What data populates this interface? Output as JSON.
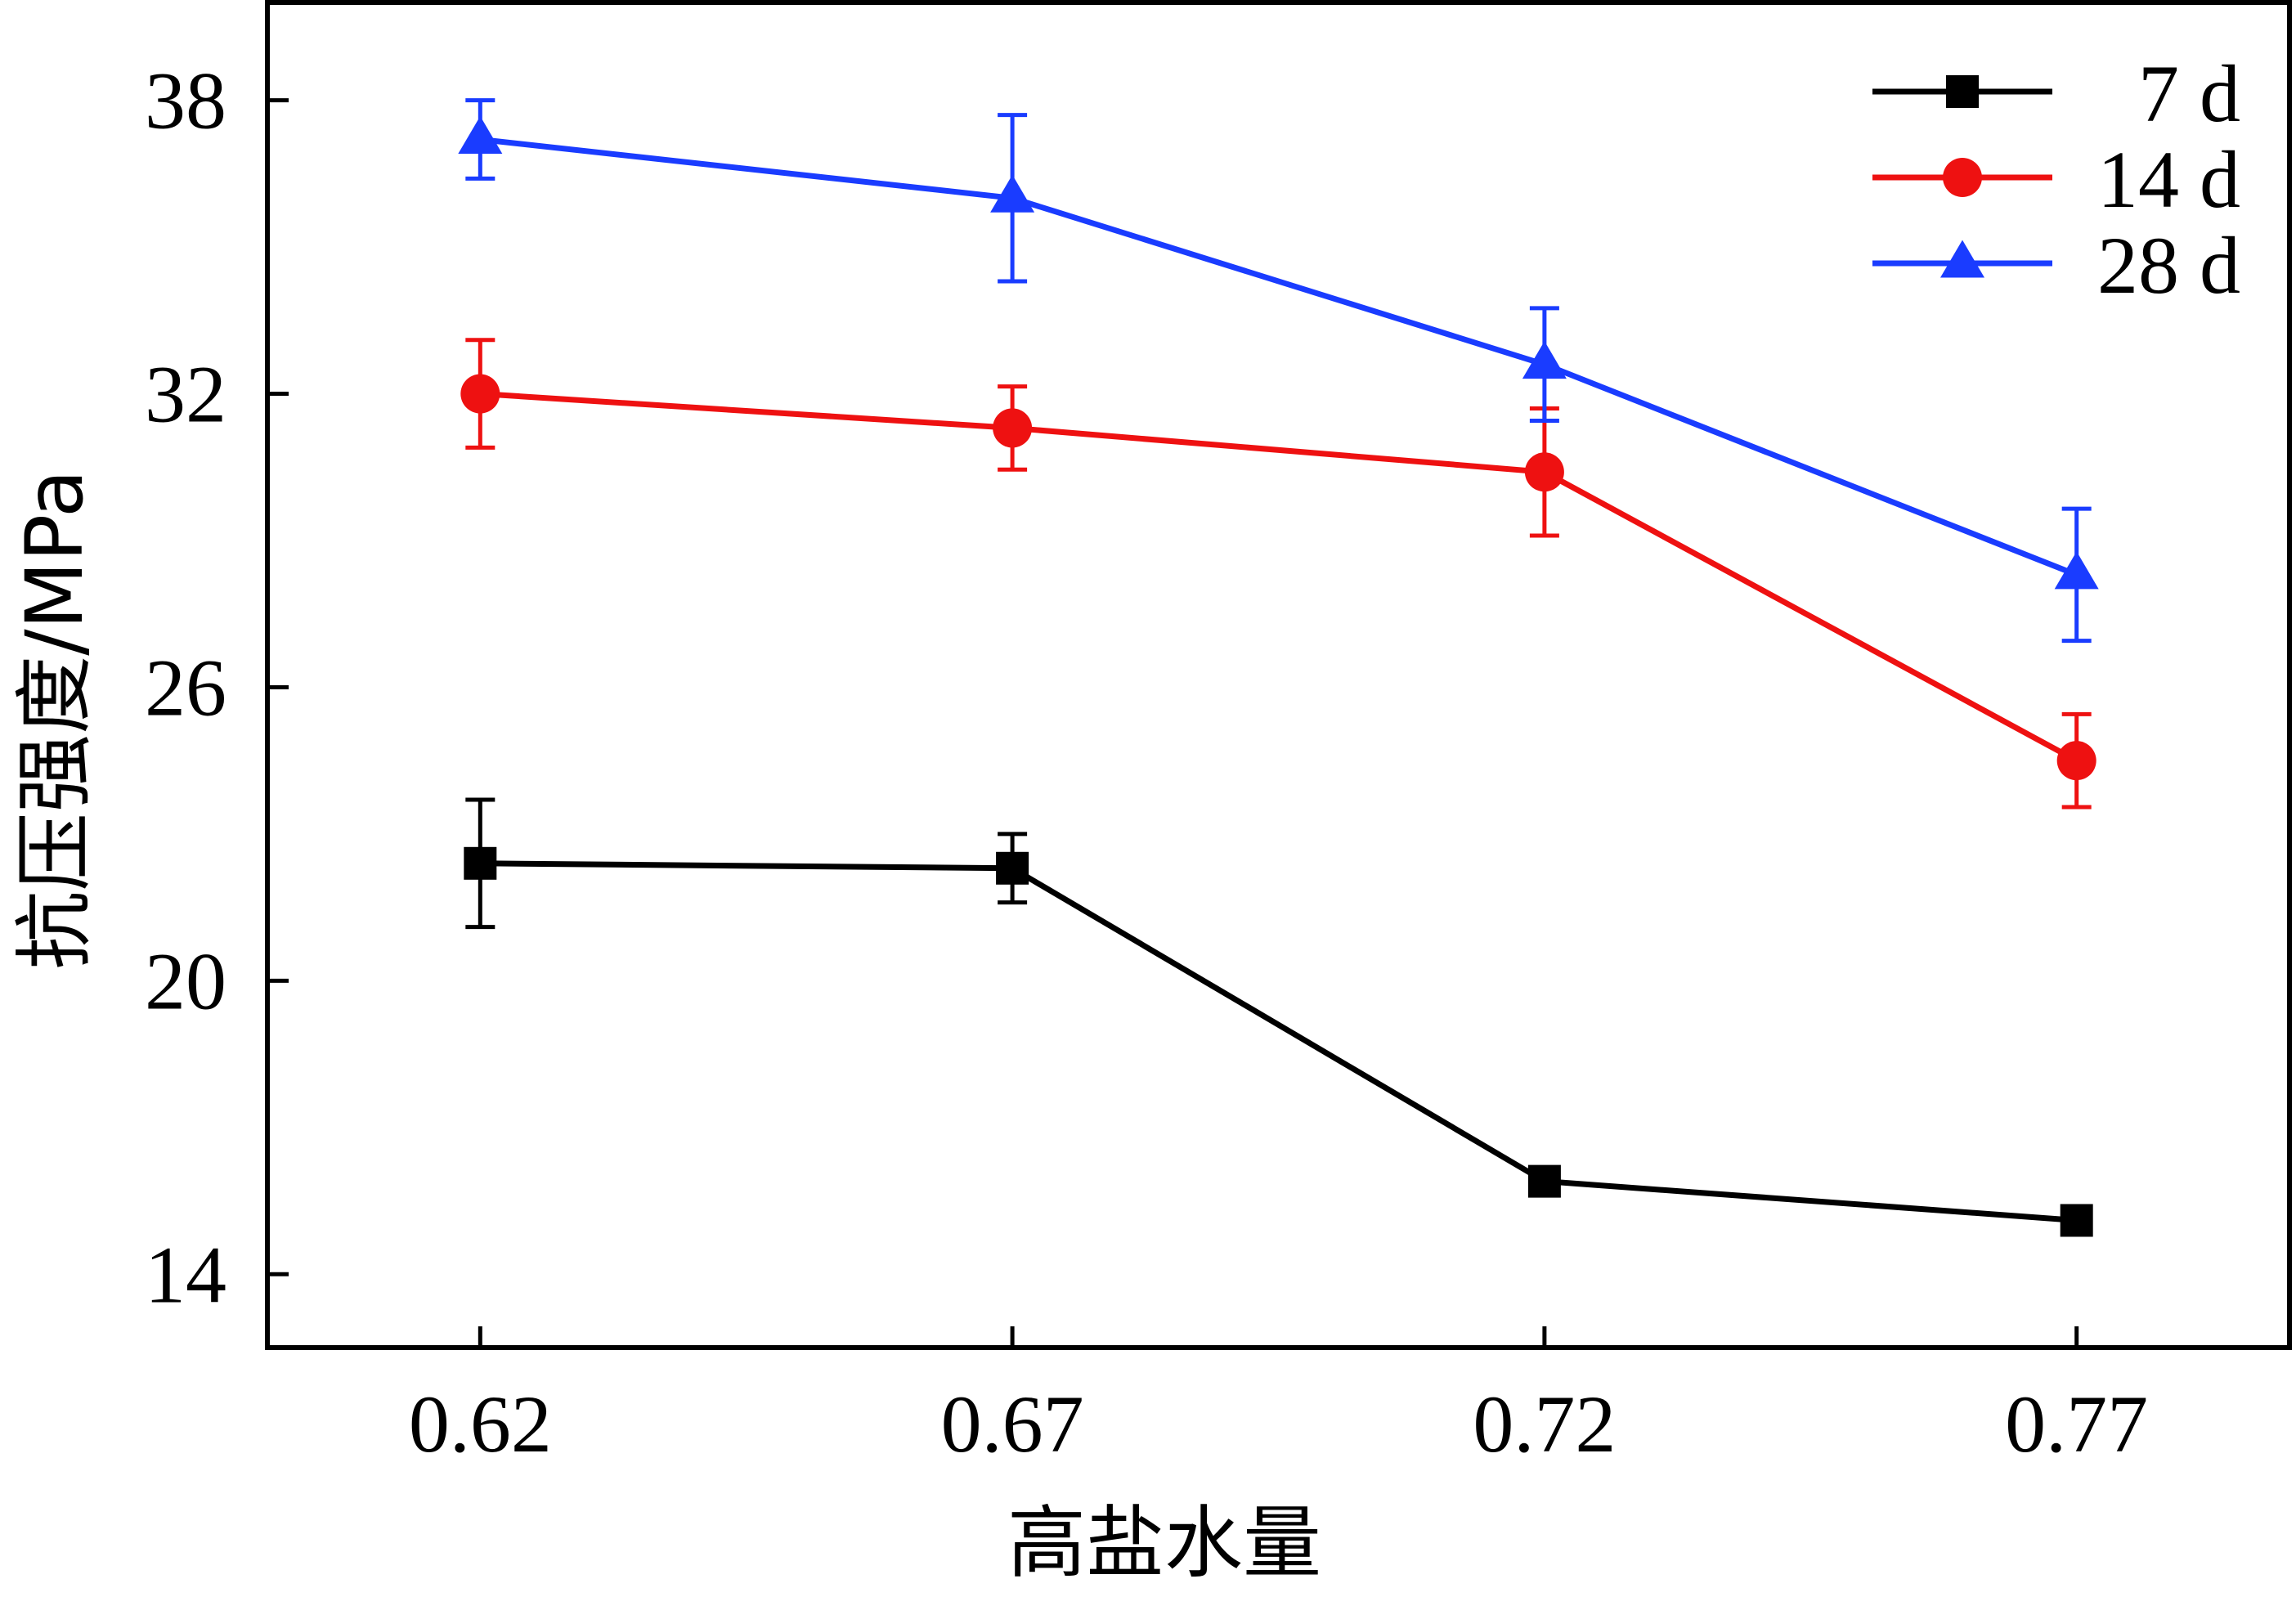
{
  "chart_data": {
    "type": "line",
    "title": "",
    "xlabel": "高盐水量",
    "ylabel": "抗压强度/MPa",
    "categories": [
      "0.62",
      "0.67",
      "0.72",
      "0.77"
    ],
    "xlim": [
      0.6,
      0.79
    ],
    "ylim": [
      12.5,
      40
    ],
    "yticks": [
      14,
      20,
      26,
      32,
      38
    ],
    "grid": false,
    "legend_position": "top-right",
    "series": [
      {
        "name": "7 d",
        "color": "#000000",
        "marker": "square",
        "x": [
          0.62,
          0.67,
          0.72,
          0.77
        ],
        "values": [
          22.4,
          22.3,
          15.9,
          15.1
        ],
        "errors": [
          1.3,
          0.7,
          0,
          0
        ]
      },
      {
        "name": "14 d",
        "color": "#ee1111",
        "marker": "circle",
        "x": [
          0.62,
          0.67,
          0.72,
          0.77
        ],
        "values": [
          32.0,
          31.3,
          30.4,
          24.5
        ],
        "errors": [
          1.1,
          0.85,
          1.3,
          0.95
        ]
      },
      {
        "name": "28 d",
        "color": "#1a3cff",
        "marker": "triangle",
        "x": [
          0.62,
          0.67,
          0.72,
          0.77
        ],
        "values": [
          37.2,
          36.0,
          32.6,
          28.3
        ],
        "errors": [
          0.8,
          1.7,
          1.15,
          1.35
        ]
      }
    ]
  }
}
